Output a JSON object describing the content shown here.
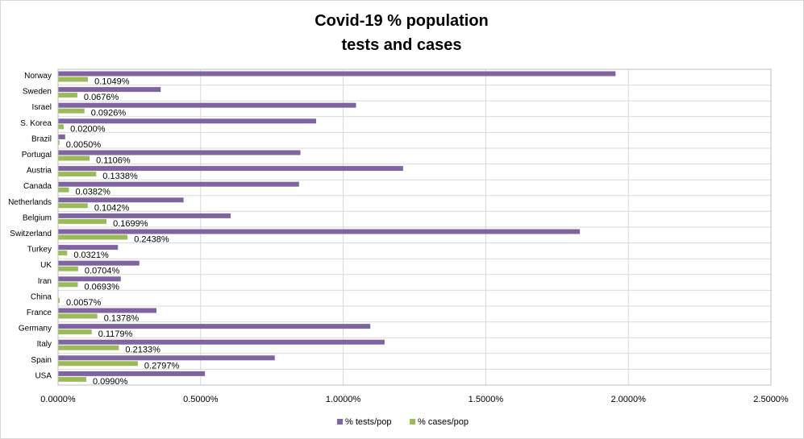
{
  "colors": {
    "tests": "#8064a2",
    "cases": "#9bbb59",
    "grid": "#d9d9d9"
  },
  "chart_data": {
    "type": "bar",
    "orientation": "horizontal",
    "title": "Covid-19 % population",
    "title_line2": "tests and cases",
    "categories": [
      "Norway",
      "Sweden",
      "Israel",
      "S. Korea",
      "Brazil",
      "Portugal",
      "Austria",
      "Canada",
      "Netherlands",
      "Belgium",
      "Switzerland",
      "Turkey",
      "UK",
      "Iran",
      "China",
      "France",
      "Germany",
      "Italy",
      "Spain",
      "USA"
    ],
    "series": [
      {
        "name": "% tests/pop",
        "color": "#8064a2",
        "values": [
          1.955,
          0.36,
          1.045,
          0.905,
          0.025,
          0.85,
          1.21,
          0.845,
          0.44,
          0.605,
          1.83,
          0.21,
          0.285,
          0.22,
          0.0,
          0.345,
          1.095,
          1.145,
          0.76,
          0.515
        ]
      },
      {
        "name": "% cases/pop",
        "color": "#9bbb59",
        "values": [
          0.1049,
          0.0676,
          0.0926,
          0.02,
          0.005,
          0.1106,
          0.1338,
          0.0382,
          0.1042,
          0.1699,
          0.2438,
          0.0321,
          0.0704,
          0.0693,
          0.0057,
          0.1378,
          0.1179,
          0.2133,
          0.2797,
          0.099
        ],
        "data_labels": [
          "0.1049%",
          "0.0676%",
          "0.0926%",
          "0.0200%",
          "0.0050%",
          "0.1106%",
          "0.1338%",
          "0.0382%",
          "0.1042%",
          "0.1699%",
          "0.2438%",
          "0.0321%",
          "0.0704%",
          "0.0693%",
          "0.0057%",
          "0.1378%",
          "0.1179%",
          "0.2133%",
          "0.2797%",
          "0.0990%"
        ]
      }
    ],
    "xlim": [
      0,
      2.5
    ],
    "xticks": [
      0,
      0.5,
      1.0,
      1.5,
      2.0,
      2.5
    ],
    "xtick_labels": [
      "0.0000%",
      "0.5000%",
      "1.0000%",
      "1.5000%",
      "2.0000%",
      "2.5000%"
    ],
    "grid": true,
    "legend_position": "bottom"
  }
}
